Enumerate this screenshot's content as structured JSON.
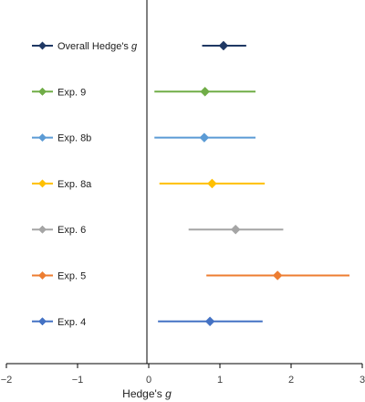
{
  "chart_data": {
    "type": "forest",
    "xlabel": "Hedge's",
    "xlabel_italic": "g",
    "xlim": [
      -2,
      3
    ],
    "xticks": [
      {
        "value": -2,
        "label": "−2"
      },
      {
        "value": -1,
        "label": "−1"
      },
      {
        "value": 0,
        "label": "0"
      },
      {
        "value": 1,
        "label": "1"
      },
      {
        "value": 2,
        "label": "2"
      },
      {
        "value": 3,
        "label": "3"
      }
    ],
    "grid": false,
    "legend_position": "left",
    "series": [
      {
        "name": "Overall Hedge's",
        "name_italic": "g",
        "estimate": 1.05,
        "ci": [
          0.75,
          1.37
        ],
        "color": "#1f3864"
      },
      {
        "name": "Exp. 9",
        "estimate": 0.79,
        "ci": [
          0.08,
          1.5
        ],
        "color": "#70ad47"
      },
      {
        "name": "Exp. 8b",
        "estimate": 0.78,
        "ci": [
          0.08,
          1.5
        ],
        "color": "#5b9bd5"
      },
      {
        "name": "Exp. 8a",
        "estimate": 0.89,
        "ci": [
          0.15,
          1.63
        ],
        "color": "#ffc000"
      },
      {
        "name": "Exp. 6",
        "estimate": 1.22,
        "ci": [
          0.56,
          1.89
        ],
        "color": "#a5a5a5"
      },
      {
        "name": "Exp. 5",
        "estimate": 1.81,
        "ci": [
          0.81,
          2.82
        ],
        "color": "#ed7d31"
      },
      {
        "name": "Exp. 4",
        "estimate": 0.86,
        "ci": [
          0.13,
          1.6
        ],
        "color": "#4472c4"
      }
    ]
  }
}
